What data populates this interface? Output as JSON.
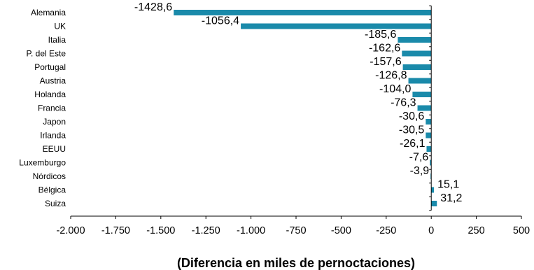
{
  "chart_data": {
    "type": "bar",
    "orientation": "horizontal",
    "categories": [
      "Alemania",
      "UK",
      "Italia",
      "P. del Este",
      "Portugal",
      "Austria",
      "Holanda",
      "Francia",
      "Japon",
      "Irlanda",
      "EEUU",
      "Luxemburgo",
      "Nórdicos",
      "Bélgica",
      "Suiza"
    ],
    "values": [
      -1428.6,
      -1056.4,
      -185.6,
      -162.6,
      -157.6,
      -126.8,
      -104.0,
      -76.3,
      -30.6,
      -30.5,
      -26.1,
      -7.6,
      -3.9,
      15.1,
      31.2
    ],
    "value_labels": [
      "-1428,6",
      "-1056,4",
      "-185,6",
      "-162,6",
      "-157,6",
      "-126,8",
      "-104,0",
      "-76,3",
      "-30,6",
      "-30,5",
      "-26,1",
      "-7,6",
      "-3,9",
      "15,1",
      "31,2"
    ],
    "xlabel": "(Diferencia en miles de pernoctaciones)",
    "xlim": [
      -2000,
      500
    ],
    "xticks": [
      -2000,
      -1750,
      -1500,
      -1250,
      -1000,
      -750,
      -500,
      -250,
      0,
      250,
      500
    ],
    "xtick_labels": [
      "-2.000",
      "-1.750",
      "-1.500",
      "-1.250",
      "-1.000",
      "-750",
      "-500",
      "-250",
      "0",
      "250",
      "500"
    ],
    "bar_color": "#1a8aaa",
    "grid": false,
    "legend": "none"
  }
}
